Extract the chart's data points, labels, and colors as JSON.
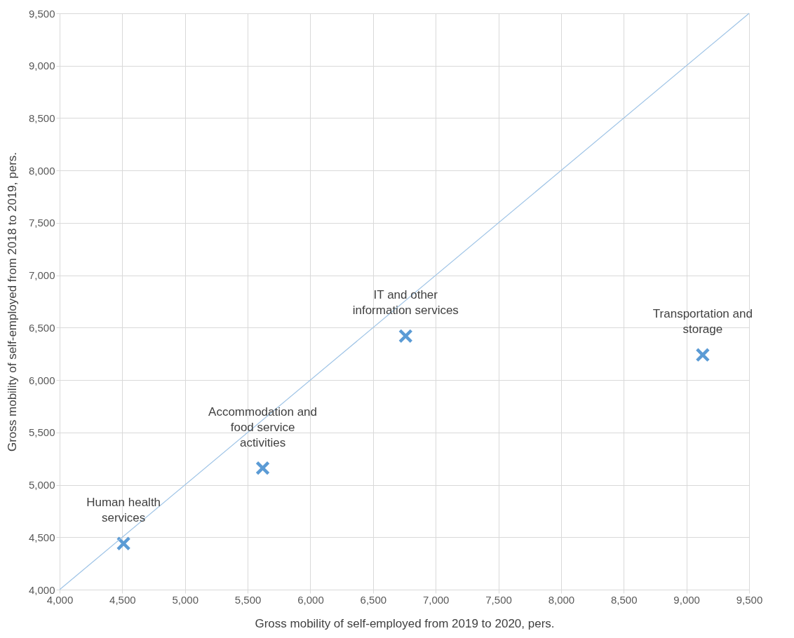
{
  "chart_data": {
    "type": "scatter",
    "xlabel": "Gross mobility of self-employed  from 2019 to 2020, pers.",
    "ylabel": "Gross mobility of self-employed  from 2018 to 2019, pers.",
    "xlim": [
      4000,
      9500
    ],
    "ylim": [
      4000,
      9500
    ],
    "xticks": [
      {
        "value": 4000,
        "label": "4,000"
      },
      {
        "value": 4500,
        "label": "4,500"
      },
      {
        "value": 5000,
        "label": "5,000"
      },
      {
        "value": 5500,
        "label": "5,500"
      },
      {
        "value": 6000,
        "label": "6,000"
      },
      {
        "value": 6500,
        "label": "6,500"
      },
      {
        "value": 7000,
        "label": "7,000"
      },
      {
        "value": 7500,
        "label": "7,500"
      },
      {
        "value": 8000,
        "label": "8,000"
      },
      {
        "value": 8500,
        "label": "8,500"
      },
      {
        "value": 9000,
        "label": "9,000"
      },
      {
        "value": 9500,
        "label": "9,500"
      }
    ],
    "yticks": [
      {
        "value": 4000,
        "label": "4,000"
      },
      {
        "value": 4500,
        "label": "4,500"
      },
      {
        "value": 5000,
        "label": "5,000"
      },
      {
        "value": 5500,
        "label": "5,500"
      },
      {
        "value": 6000,
        "label": "6,000"
      },
      {
        "value": 6500,
        "label": "6,500"
      },
      {
        "value": 7000,
        "label": "7,000"
      },
      {
        "value": 7500,
        "label": "7,500"
      },
      {
        "value": 8000,
        "label": "8,000"
      },
      {
        "value": 8500,
        "label": "8,500"
      },
      {
        "value": 9000,
        "label": "9,000"
      },
      {
        "value": 9500,
        "label": "9,500"
      }
    ],
    "grid": true,
    "marker": "cross",
    "series": [
      {
        "type": "scatter",
        "color": "#5b9bd5",
        "x": [
          4510,
          5620,
          6760,
          9130
        ],
        "values": [
          4440,
          5160,
          6420,
          6240
        ]
      },
      {
        "type": "line",
        "color": "#9dc3e6",
        "x": [
          4000,
          9500
        ],
        "values": [
          4000,
          9500
        ],
        "marker": "none",
        "line_style": "solid"
      }
    ],
    "annotations": [
      {
        "text": "Human health services",
        "x": 4510,
        "y": 4440
      },
      {
        "text": "Accommodation and food service activities",
        "x": 5620,
        "y": 5160
      },
      {
        "text": "IT and other information services",
        "x": 6760,
        "y": 6420
      },
      {
        "text": "Transportation and storage",
        "x": 9130,
        "y": 6240
      }
    ]
  }
}
